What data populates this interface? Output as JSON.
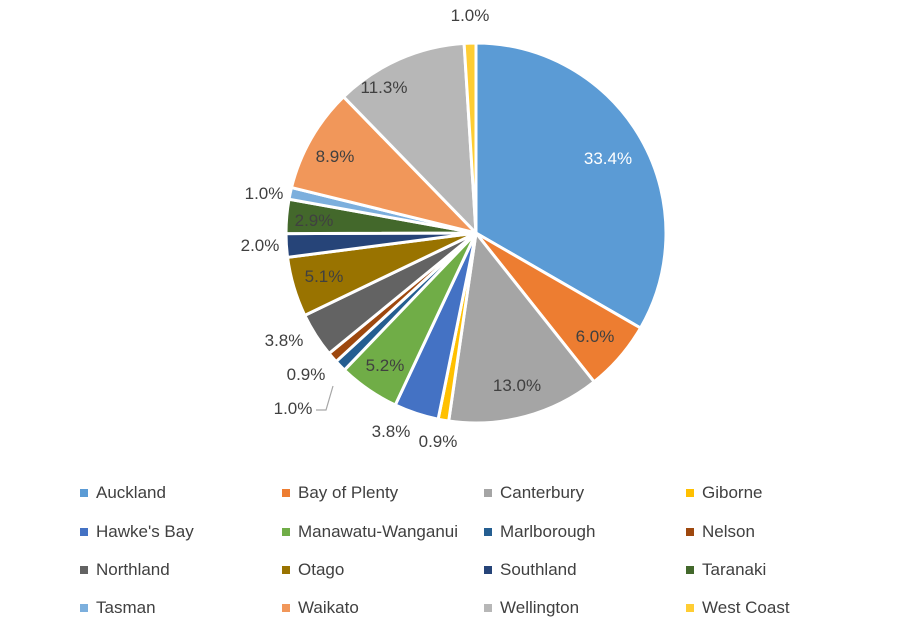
{
  "chart_data": {
    "type": "pie",
    "title": "",
    "categories": [
      "Auckland",
      "Bay of Plenty",
      "Canterbury",
      "Giborne",
      "Hawke's Bay",
      "Manawatu-Wanganui",
      "Marlborough",
      "Nelson",
      "Northland",
      "Otago",
      "Southland",
      "Taranaki",
      "Tasman",
      "Waikato",
      "Wellington",
      "West Coast"
    ],
    "values": [
      33.4,
      6.0,
      13.0,
      0.9,
      3.8,
      5.2,
      1.0,
      0.9,
      3.8,
      5.1,
      2.0,
      2.9,
      1.0,
      8.9,
      11.3,
      1.0
    ],
    "labels": [
      "33.4%",
      "6.0%",
      "13.0%",
      "0.9%",
      "3.8%",
      "5.2%",
      "1.0%",
      "0.9%",
      "3.8%",
      "5.1%",
      "2.0%",
      "2.9%",
      "1.0%",
      "8.9%",
      "11.3%",
      "1.0%"
    ],
    "colors": [
      "#5B9BD5",
      "#ED7D31",
      "#A5A5A5",
      "#FFC000",
      "#4472C4",
      "#70AD47",
      "#255E91",
      "#9E480E",
      "#636363",
      "#997300",
      "#264478",
      "#43682B",
      "#7CAFDD",
      "#F1975A",
      "#B7B7B7",
      "#FFCD33"
    ],
    "start": "12 o'clock",
    "direction": "clockwise",
    "legend_position": "bottom"
  }
}
